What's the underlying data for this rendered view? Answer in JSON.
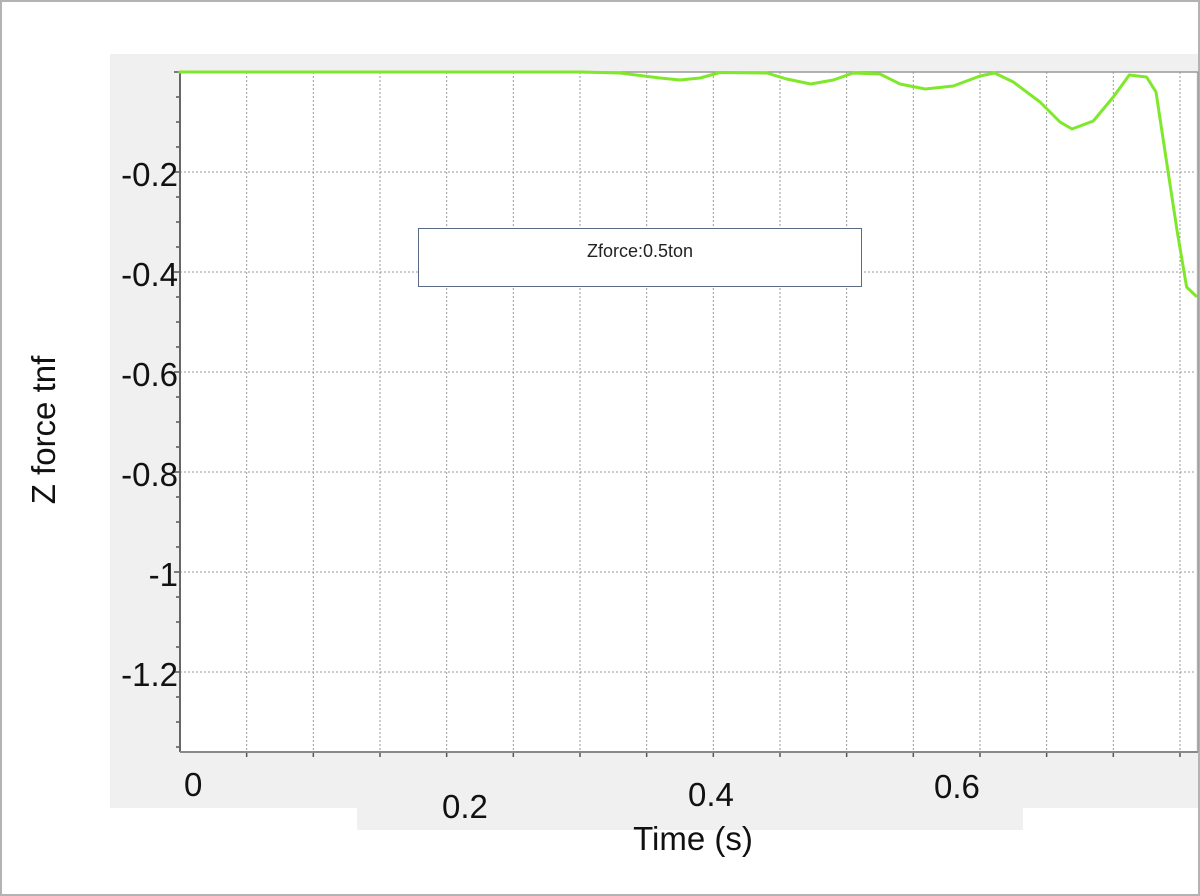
{
  "chart_data": {
    "type": "line",
    "title": "",
    "xlabel": "Time (s)",
    "ylabel": "Z force tnf",
    "xlim": [
      0,
      0.762
    ],
    "ylim": [
      -1.36,
      0
    ],
    "grid": true,
    "legend": null,
    "x_ticks": [
      "0",
      "0.2",
      "0.4",
      "0.6"
    ],
    "y_ticks": [
      "-0.2",
      "-0.4",
      "-0.6",
      "-0.8",
      "-1",
      "-1.2"
    ],
    "annotations": [
      "Zforce:0.5ton"
    ],
    "series": [
      {
        "name": "Zforce",
        "color": "#7fe82a",
        "x": [
          0,
          0.1,
          0.2,
          0.3,
          0.33,
          0.36,
          0.375,
          0.39,
          0.405,
          0.44,
          0.455,
          0.473,
          0.49,
          0.505,
          0.525,
          0.54,
          0.559,
          0.58,
          0.6,
          0.611,
          0.625,
          0.645,
          0.66,
          0.669,
          0.685,
          0.7,
          0.712,
          0.725,
          0.732,
          0.74,
          0.748,
          0.755,
          0.762
        ],
        "y": [
          0,
          0,
          0,
          0,
          -0.002,
          -0.012,
          -0.016,
          -0.012,
          -0.001,
          -0.002,
          -0.014,
          -0.024,
          -0.016,
          -0.002,
          -0.004,
          -0.024,
          -0.034,
          -0.028,
          -0.008,
          -0.002,
          -0.02,
          -0.06,
          -0.1,
          -0.114,
          -0.098,
          -0.05,
          -0.006,
          -0.01,
          -0.04,
          -0.18,
          -0.32,
          -0.43,
          -0.448
        ]
      }
    ]
  },
  "plot": {
    "y_tick_labels": [
      {
        "label": "-0.2",
        "value": -0.2
      },
      {
        "label": "-0.4",
        "value": -0.4
      },
      {
        "label": "-0.6",
        "value": -0.6
      },
      {
        "label": "-0.8",
        "value": -0.8
      },
      {
        "label": "-1",
        "value": -1
      },
      {
        "label": "-1.2",
        "value": -1.2
      }
    ],
    "x_tick_labels": [
      {
        "label": "0",
        "value": 0
      },
      {
        "label": "0.2",
        "value": 0.2
      },
      {
        "label": "0.4",
        "value": 0.4
      },
      {
        "label": "0.6",
        "value": 0.6
      }
    ],
    "y_axis_title": "Z force tnf",
    "x_axis_title": "Time (s)",
    "annotation_text": "Zforce:0.5ton",
    "colors": {
      "line": "#7fe82a",
      "grid": "#9a9a9a",
      "panel": "#f0f0f0",
      "annotation_border": "#5b6a86"
    }
  }
}
